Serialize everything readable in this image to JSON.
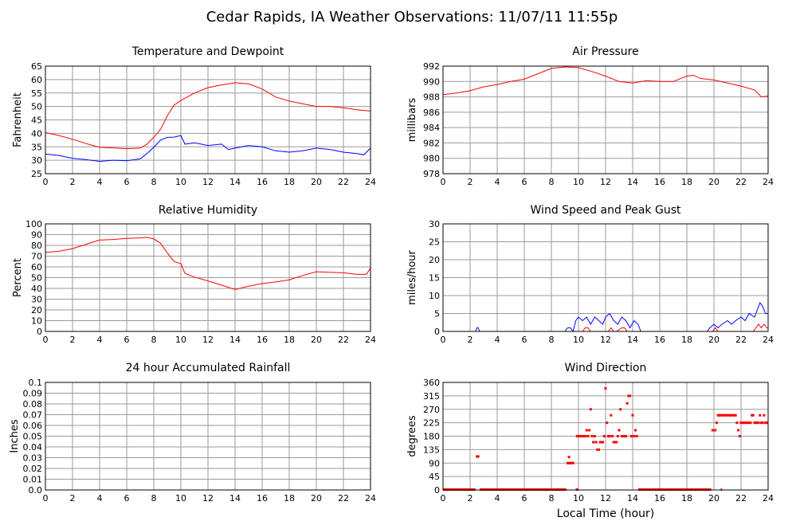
{
  "title": "Cedar Rapids, IA Weather Observations: 11/07/11 11:55p",
  "xlabel": "Local Time (hour)",
  "colors": {
    "red": "#ff0000",
    "blue": "#0000ff",
    "grid": "#9a9a9a"
  },
  "chart_data": [
    {
      "id": "temp",
      "type": "line",
      "title": "Temperature and Dewpoint",
      "ylabel": "Fahrenheit",
      "xlim": [
        0,
        24
      ],
      "ylim": [
        25,
        65
      ],
      "xticks": [
        0,
        2,
        4,
        6,
        8,
        10,
        12,
        14,
        16,
        18,
        20,
        22,
        24
      ],
      "yticks": [
        25,
        30,
        35,
        40,
        45,
        50,
        55,
        60,
        65
      ],
      "grid": true,
      "series": [
        {
          "color": "#ff0000",
          "x": [
            0,
            1,
            2,
            3,
            4,
            5,
            6,
            7,
            7.5,
            8,
            8.5,
            9,
            9.5,
            10,
            11,
            12,
            13,
            14,
            15,
            16,
            17,
            18,
            19,
            20,
            21,
            22,
            23,
            24
          ],
          "y": [
            40.3,
            39.2,
            37.8,
            36.2,
            34.8,
            34.6,
            34.3,
            34.5,
            36.0,
            38.5,
            41.5,
            46.5,
            50.5,
            52.2,
            55.0,
            57.0,
            58.0,
            58.8,
            58.4,
            56.5,
            53.5,
            52.0,
            51.0,
            50.0,
            50.0,
            49.5,
            48.8,
            48.3
          ]
        },
        {
          "color": "#0000ff",
          "x": [
            0,
            1,
            2,
            3,
            4,
            5,
            6,
            7,
            7.5,
            8,
            8.5,
            9,
            9.5,
            10,
            10.3,
            11,
            12,
            13,
            13.5,
            14,
            15,
            16,
            17,
            18,
            19,
            20,
            21,
            22,
            23,
            23.5,
            24
          ],
          "y": [
            32.3,
            31.8,
            30.7,
            30.2,
            29.6,
            30.0,
            29.8,
            30.5,
            32.5,
            34.8,
            37.5,
            38.5,
            38.6,
            39.2,
            36.0,
            36.5,
            35.5,
            36.0,
            34.0,
            34.5,
            35.5,
            35.0,
            33.5,
            33.0,
            33.5,
            34.5,
            34.0,
            33.0,
            32.5,
            32.0,
            34.5
          ]
        }
      ]
    },
    {
      "id": "pressure",
      "type": "line",
      "title": "Air Pressure",
      "ylabel": "millibars",
      "xlim": [
        0,
        24
      ],
      "ylim": [
        978,
        992
      ],
      "xticks": [
        0,
        2,
        4,
        6,
        8,
        10,
        12,
        14,
        16,
        18,
        20,
        22,
        24
      ],
      "yticks": [
        978,
        980,
        982,
        984,
        986,
        988,
        990,
        992
      ],
      "grid": true,
      "series": [
        {
          "color": "#ff0000",
          "x": [
            0,
            1,
            2,
            3,
            4,
            5,
            6,
            7,
            8,
            9,
            10,
            11,
            12,
            13,
            14,
            15,
            16,
            17,
            18,
            18.5,
            19,
            20,
            21,
            22,
            23,
            23.5,
            24
          ],
          "y": [
            988.3,
            988.5,
            988.8,
            989.3,
            989.6,
            990.0,
            990.3,
            991.0,
            991.7,
            991.9,
            991.8,
            991.3,
            990.7,
            990.0,
            989.8,
            990.1,
            990.0,
            990.0,
            990.7,
            990.8,
            990.4,
            990.2,
            989.8,
            989.4,
            988.9,
            988.0,
            988.1
          ]
        }
      ]
    },
    {
      "id": "humidity",
      "type": "line",
      "title": "Relative Humidity",
      "ylabel": "Percent",
      "xlim": [
        0,
        24
      ],
      "ylim": [
        0,
        100
      ],
      "xticks": [
        0,
        2,
        4,
        6,
        8,
        10,
        12,
        14,
        16,
        18,
        20,
        22,
        24
      ],
      "yticks": [
        0,
        10,
        20,
        30,
        40,
        50,
        60,
        70,
        80,
        90,
        100
      ],
      "grid": true,
      "series": [
        {
          "color": "#ff0000",
          "x": [
            0,
            1,
            2,
            3,
            4,
            5,
            6,
            7,
            7.5,
            8,
            8.5,
            9,
            9.5,
            10,
            10.3,
            11,
            12,
            13,
            14,
            15,
            16,
            17,
            18,
            19,
            20,
            21,
            22,
            23,
            23.7,
            24
          ],
          "y": [
            73.5,
            74.5,
            77.0,
            81.0,
            85.0,
            85.5,
            86.5,
            87.0,
            87.5,
            86.0,
            82.0,
            73.0,
            65.0,
            63.0,
            54.0,
            50.5,
            47.0,
            43.0,
            39.0,
            42.0,
            44.5,
            46.0,
            48.0,
            52.0,
            55.5,
            55.0,
            54.5,
            53.0,
            53.0,
            59.0
          ]
        }
      ]
    },
    {
      "id": "wind",
      "type": "line",
      "title": "Wind Speed and Peak Gust",
      "ylabel": "miles/hour",
      "xlim": [
        0,
        24
      ],
      "ylim": [
        0,
        30
      ],
      "xticks": [
        0,
        2,
        4,
        6,
        8,
        10,
        12,
        14,
        16,
        18,
        20,
        22,
        24
      ],
      "yticks": [
        0,
        5,
        10,
        15,
        20,
        25,
        30
      ],
      "grid": true,
      "series": [
        {
          "color": "#0000ff",
          "x": [
            0,
            2.4,
            2.5,
            2.6,
            2.7,
            9.0,
            9.2,
            9.4,
            9.6,
            9.8,
            10.0,
            10.3,
            10.6,
            10.9,
            11.2,
            11.5,
            11.8,
            12.0,
            12.3,
            12.6,
            12.9,
            13.2,
            13.5,
            13.8,
            14.1,
            14.4,
            14.6,
            19.5,
            19.7,
            20.0,
            20.3,
            20.6,
            21.0,
            21.3,
            21.6,
            22.0,
            22.3,
            22.6,
            23.0,
            23.2,
            23.4,
            23.6,
            23.8,
            24.0
          ],
          "y": [
            0,
            0,
            1,
            1,
            0,
            0,
            1,
            1,
            0,
            3,
            4,
            3,
            4,
            2,
            4,
            3,
            2,
            4,
            5,
            3,
            2,
            4,
            3,
            1,
            3,
            2,
            0,
            0,
            1,
            2,
            1,
            2,
            3,
            2,
            3,
            4,
            3,
            5,
            4,
            6,
            8,
            7,
            5,
            5
          ]
        },
        {
          "color": "#ff0000",
          "x": [
            0,
            10.3,
            10.5,
            10.7,
            10.9,
            12.2,
            12.4,
            12.6,
            12.8,
            13.2,
            13.4,
            13.6,
            19.9,
            20.1,
            20.3,
            22.9,
            23.1,
            23.3,
            23.5,
            23.7,
            23.9,
            24.0
          ],
          "y": [
            0,
            0,
            1,
            1,
            0,
            0,
            1,
            0,
            0,
            1,
            1,
            0,
            0,
            1,
            0,
            0,
            1,
            2,
            1,
            2,
            1,
            1
          ]
        }
      ]
    },
    {
      "id": "rain",
      "type": "line",
      "title": "24 hour Accumulated Rainfall",
      "ylabel": "Inches",
      "xlim": [
        0,
        24
      ],
      "ylim": [
        0,
        0.1
      ],
      "xticks": [
        0,
        2,
        4,
        6,
        8,
        10,
        12,
        14,
        16,
        18,
        20,
        22,
        24
      ],
      "yticks": [
        0,
        0.01,
        0.02,
        0.03,
        0.04,
        0.05,
        0.06,
        0.07,
        0.08,
        0.09,
        0.1
      ],
      "ytick_labels": [
        "0.0",
        "0.01",
        "0.02",
        "0.03",
        "0.04",
        "0.05",
        "0.06",
        "0.07",
        "0.08",
        "0.09",
        "0.1"
      ],
      "grid": true,
      "series": [
        {
          "color": "#ff0000",
          "x": [
            0,
            24
          ],
          "y": [
            0,
            0
          ]
        }
      ]
    },
    {
      "id": "direction",
      "type": "scatter",
      "title": "Wind Direction",
      "ylabel": "degrees",
      "xlim": [
        0,
        24
      ],
      "ylim": [
        0,
        360
      ],
      "xticks": [
        0,
        2,
        4,
        6,
        8,
        10,
        12,
        14,
        16,
        18,
        20,
        22,
        24
      ],
      "yticks": [
        0,
        45,
        90,
        135,
        180,
        225,
        270,
        315,
        360
      ],
      "grid": true,
      "point_color": "#ff0000",
      "zero_runs": [
        [
          0,
          2.4
        ],
        [
          2.7,
          9.1
        ],
        [
          9.8,
          10.0
        ],
        [
          14.4,
          19.8
        ],
        [
          20.5,
          20.6
        ]
      ],
      "points": [
        [
          2.5,
          112
        ],
        [
          2.6,
          112
        ],
        [
          9.2,
          90
        ],
        [
          9.3,
          90
        ],
        [
          9.4,
          90
        ],
        [
          9.5,
          90
        ],
        [
          9.6,
          90
        ],
        [
          9.3,
          110
        ],
        [
          9.9,
          180
        ],
        [
          10.0,
          180
        ],
        [
          10.1,
          180
        ],
        [
          10.2,
          180
        ],
        [
          10.3,
          180
        ],
        [
          10.4,
          180
        ],
        [
          10.5,
          180
        ],
        [
          10.6,
          200
        ],
        [
          10.8,
          200
        ],
        [
          10.9,
          270
        ],
        [
          10.7,
          180
        ],
        [
          11.0,
          180
        ],
        [
          11.1,
          160
        ],
        [
          11.2,
          180
        ],
        [
          11.3,
          160
        ],
        [
          11.4,
          135
        ],
        [
          11.5,
          135
        ],
        [
          11.6,
          160
        ],
        [
          11.7,
          160
        ],
        [
          11.8,
          160
        ],
        [
          11.9,
          180
        ],
        [
          12.0,
          340
        ],
        [
          12.1,
          225
        ],
        [
          12.2,
          180
        ],
        [
          12.3,
          180
        ],
        [
          12.4,
          250
        ],
        [
          12.5,
          180
        ],
        [
          12.6,
          160
        ],
        [
          12.7,
          160
        ],
        [
          12.8,
          160
        ],
        [
          12.9,
          180
        ],
        [
          13.0,
          200
        ],
        [
          13.1,
          270
        ],
        [
          13.2,
          180
        ],
        [
          13.3,
          180
        ],
        [
          13.4,
          180
        ],
        [
          13.5,
          180
        ],
        [
          13.6,
          290
        ],
        [
          13.7,
          315
        ],
        [
          13.8,
          315
        ],
        [
          13.9,
          180
        ],
        [
          14.0,
          250
        ],
        [
          14.1,
          180
        ],
        [
          14.2,
          200
        ],
        [
          14.3,
          180
        ],
        [
          19.9,
          200
        ],
        [
          20.1,
          200
        ],
        [
          20.2,
          225
        ],
        [
          20.3,
          250
        ],
        [
          20.4,
          250
        ],
        [
          20.5,
          250
        ],
        [
          20.6,
          250
        ],
        [
          20.7,
          250
        ],
        [
          20.8,
          250
        ],
        [
          20.9,
          250
        ],
        [
          21.0,
          250
        ],
        [
          21.1,
          250
        ],
        [
          21.2,
          250
        ],
        [
          21.3,
          250
        ],
        [
          21.4,
          250
        ],
        [
          21.5,
          250
        ],
        [
          21.6,
          250
        ],
        [
          21.7,
          225
        ],
        [
          21.8,
          200
        ],
        [
          21.9,
          180
        ],
        [
          22.0,
          225
        ],
        [
          22.1,
          225
        ],
        [
          22.2,
          225
        ],
        [
          22.3,
          225
        ],
        [
          22.4,
          225
        ],
        [
          22.5,
          225
        ],
        [
          22.6,
          225
        ],
        [
          22.7,
          225
        ],
        [
          22.8,
          250
        ],
        [
          22.9,
          250
        ],
        [
          23.0,
          225
        ],
        [
          23.1,
          225
        ],
        [
          23.2,
          225
        ],
        [
          23.3,
          225
        ],
        [
          23.4,
          250
        ],
        [
          23.5,
          225
        ],
        [
          23.6,
          225
        ],
        [
          23.7,
          250
        ],
        [
          23.8,
          225
        ],
        [
          23.9,
          225
        ],
        [
          24.0,
          225
        ]
      ]
    }
  ]
}
